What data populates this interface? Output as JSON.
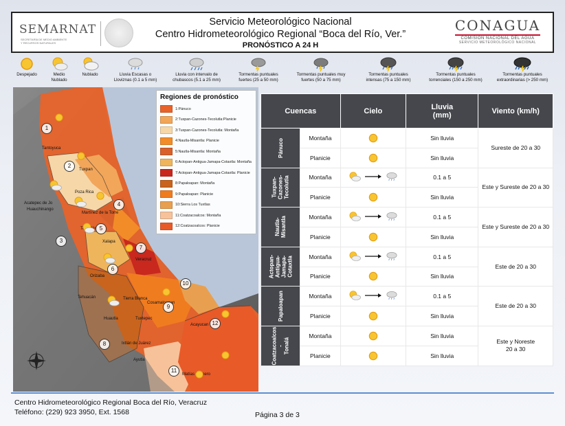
{
  "header": {
    "left_logo": "SEMARNAT",
    "left_logo_sub1": "SECRETARÍA DE MEDIO AMBIENTE",
    "left_logo_sub2": "Y RECURSOS NATURALES",
    "title1": "Servicio Meteorológico Nacional",
    "title2": "Centro Hidrometeorológico Regional “Boca del Río, Ver.”",
    "title3": "PRONÓSTICO A 24 H",
    "right_logo": "CONAGUA",
    "right_logo_sub1": "COMISIÓN NACIONAL DEL AGUA",
    "right_logo_sub2": "SERVICIO METEOROLÓGICO NACIONAL"
  },
  "legend": [
    {
      "icon": "sun-icon",
      "label1": "Despejado",
      "label2": ""
    },
    {
      "icon": "partly-cloudy-icon",
      "label1": "Medio",
      "label2": "Nublado"
    },
    {
      "icon": "cloudy-icon",
      "label1": "Nublado",
      "label2": ""
    },
    {
      "icon": "drizzle-icon",
      "label1": "Lluvia Escasas o",
      "label2": "Lloviznas (0.1 a 5 mm)"
    },
    {
      "icon": "showers-icon",
      "label1": "Lluvia con intervalo de",
      "label2": "chubascos (5.1 a 25 mm)"
    },
    {
      "icon": "storm-icon",
      "label1": "Tormentas puntuales",
      "label2": "fuertes (25 a 50 mm)"
    },
    {
      "icon": "storm-strong-icon",
      "label1": "Tormentas puntuales muy",
      "label2": "fuertes (50 a 75 mm)"
    },
    {
      "icon": "storm-intense-icon",
      "label1": "Tormentas puntuales",
      "label2": "intensas (75 a 150 mm)"
    },
    {
      "icon": "storm-torrential-icon",
      "label1": "Tormentas puntuales",
      "label2": "torrenciales (150 a 250 mm)"
    },
    {
      "icon": "storm-extreme-icon",
      "label1": "Tormentas puntuales",
      "label2": "extraordinarias (> 250 mm)"
    }
  ],
  "map": {
    "regions_title": "Regiones de pronóstico",
    "regions": [
      {
        "label": "1:Pánuco",
        "color": "#e8632a"
      },
      {
        "label": "2:Tuxpan-Cazones-Tecolutla:Planicie",
        "color": "#f2a65a"
      },
      {
        "label": "3:Tuxpan-Cazones-Tecolutla: Montaña",
        "color": "#f6d7a8"
      },
      {
        "label": "4:Nautla-Misantla: Planicie",
        "color": "#f28c28"
      },
      {
        "label": "5:Nautla-Misantla: Montaña",
        "color": "#d9602a"
      },
      {
        "label": "6:Actopan-Antigua-Jamapa-Cotaxtla: Montaña",
        "color": "#efb55c"
      },
      {
        "label": "7:Actopan-Antigua-Jamapa-Cotaxtla: Planicie",
        "color": "#c8281e"
      },
      {
        "label": "8:Papaloapan: Montaña",
        "color": "#c8641e"
      },
      {
        "label": "9:Papaloapan: Planicie",
        "color": "#f07c20"
      },
      {
        "label": "10:Sierra Los Tuxtlas",
        "color": "#e8a050"
      },
      {
        "label": "11:Coatzacoalcos: Montaña",
        "color": "#f7c29a"
      },
      {
        "label": "12:Coatzacoalcos: Planicie",
        "color": "#e85a28"
      }
    ],
    "places": [
      {
        "name": "Tantoyuca"
      },
      {
        "name": "Tuxpan"
      },
      {
        "name": "Poza Rica"
      },
      {
        "name": "Acatepec de Jo"
      },
      {
        "name": "Huauchinango"
      },
      {
        "name": "Martínez de la Torre"
      },
      {
        "name": "Teziutlán"
      },
      {
        "name": "Xalapa"
      },
      {
        "name": "Veracruz"
      },
      {
        "name": "Orizaba"
      },
      {
        "name": "Tehuacán"
      },
      {
        "name": "Tierra Blanca"
      },
      {
        "name": "Cosamaloapan"
      },
      {
        "name": "Tuxtepec"
      },
      {
        "name": "Huautla"
      },
      {
        "name": "Ixtlán de Juárez"
      },
      {
        "name": "Acayucan"
      },
      {
        "name": "Ayutla"
      },
      {
        "name": "Matías Romero"
      }
    ],
    "numbers": [
      "1",
      "2",
      "3",
      "4",
      "5",
      "6",
      "7",
      "8",
      "9",
      "10",
      "11",
      "12"
    ]
  },
  "table": {
    "headers": {
      "cuencas": "Cuencas",
      "cielo": "Cielo",
      "lluvia": "Lluvia\n(mm)",
      "viento": "Viento (km/h)"
    },
    "basins": [
      {
        "name": "Pánuco",
        "wind": "Sureste de 20 a 30",
        "rows": [
          {
            "terrain": "Montaña",
            "sky": "sun",
            "rain": "Sin lluvia"
          },
          {
            "terrain": "Planicie",
            "sky": "sun",
            "rain": "Sin lluvia"
          }
        ]
      },
      {
        "name": "Tuxpan-\nCazones-\nTecolutla",
        "wind": "Este y Sureste        de 20 a 30",
        "rows": [
          {
            "terrain": "Montaña",
            "sky": "partly-to-drizzle",
            "rain": "0.1 a 5"
          },
          {
            "terrain": "Planicie",
            "sky": "sun",
            "rain": "Sin lluvia"
          }
        ]
      },
      {
        "name": "Nautla-\nMisantla",
        "wind": "Este y Sureste        de 20 a 30",
        "rows": [
          {
            "terrain": "Montaña",
            "sky": "partly-to-drizzle",
            "rain": "0.1 a 5"
          },
          {
            "terrain": "Planicie",
            "sky": "sun",
            "rain": "Sin lluvia"
          }
        ]
      },
      {
        "name": "Actopan-\nAntigua-\nJamapa-\nCotaxtla",
        "wind": "Este de 20 a 30",
        "rows": [
          {
            "terrain": "Montaña",
            "sky": "partly-to-drizzle",
            "rain": "0.1 a 5"
          },
          {
            "terrain": "Planicie",
            "sky": "sun",
            "rain": "Sin lluvia"
          }
        ]
      },
      {
        "name": "Papaloapan",
        "wind": "Este de 20 a 30",
        "rows": [
          {
            "terrain": "Montaña",
            "sky": "partly-to-drizzle",
            "rain": "0.1 a 5"
          },
          {
            "terrain": "Planicie",
            "sky": "sun",
            "rain": "Sin lluvia"
          }
        ]
      },
      {
        "name": "Coatzacoalcos\n-\nTonalá",
        "wind": "Este y Noreste\n20 a 30",
        "rows": [
          {
            "terrain": "Montaña",
            "sky": "sun",
            "rain": "Sin lluvia"
          },
          {
            "terrain": "Planicie",
            "sky": "sun",
            "rain": "Sin lluvia"
          }
        ]
      }
    ]
  },
  "footer": {
    "line1": "Centro Hidrometeorológico Regional Boca del Río, Veracruz",
    "line2": "Teléfono: (229) 923 3950, Ext. 1568",
    "page": "Página 3 de 3"
  }
}
